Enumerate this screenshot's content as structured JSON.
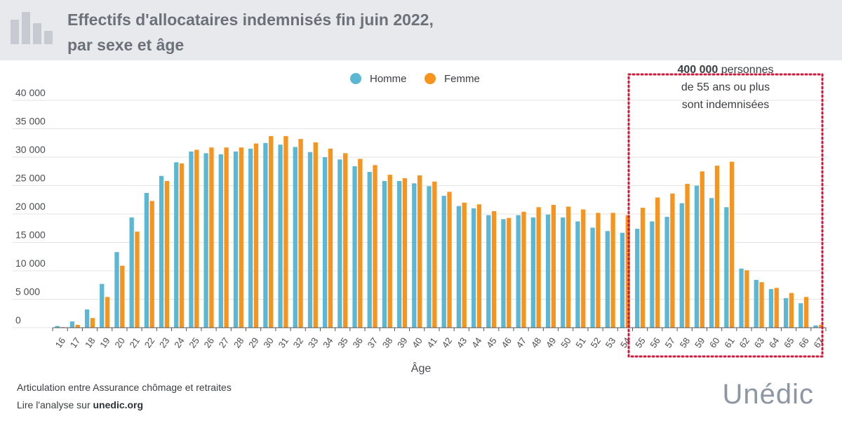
{
  "header": {
    "title_line1": "Effectifs d'allocataires indemnisés fin juin 2022,",
    "title_line2": "par sexe et âge"
  },
  "annotation": {
    "bold": "400 000",
    "line1_rest": " personnes",
    "line2": "de 55 ans ou plus",
    "line3": "sont indemnisées"
  },
  "footer": {
    "line1": "Articulation entre Assurance chômage et retraites",
    "line2_prefix": "Lire l'analyse sur ",
    "line2_link": "unedic.org",
    "brand": "Unédic"
  },
  "colors": {
    "homme": "#5bb8d4",
    "femme": "#f7941d",
    "annotation_box": "#d6173a",
    "header_bg": "#e8e9ec"
  },
  "chart_data": {
    "type": "bar",
    "xlabel": "Âge",
    "ylabel": "",
    "ylim": [
      0,
      40000
    ],
    "yticks": [
      0,
      5000,
      10000,
      15000,
      20000,
      25000,
      30000,
      35000,
      40000
    ],
    "ytick_labels": [
      "0",
      "5 000",
      "10 000",
      "15 000",
      "20 000",
      "25 000",
      "30 000",
      "35 000",
      "40 000"
    ],
    "grid": true,
    "legend": "top-center",
    "categories": [
      "16",
      "17",
      "18",
      "19",
      "20",
      "21",
      "22",
      "23",
      "24",
      "25",
      "26",
      "27",
      "28",
      "29",
      "30",
      "31",
      "32",
      "33",
      "34",
      "35",
      "36",
      "37",
      "38",
      "39",
      "40",
      "41",
      "42",
      "43",
      "44",
      "45",
      "46",
      "47",
      "48",
      "49",
      "50",
      "51",
      "52",
      "53",
      "54",
      "55",
      "56",
      "57",
      "58",
      "59",
      "60",
      "61",
      "62",
      "63",
      "64",
      "65",
      "66",
      "67"
    ],
    "series": [
      {
        "name": "Homme",
        "values": [
          300,
          1100,
          3200,
          7700,
          13300,
          19400,
          23700,
          26700,
          29100,
          31000,
          30700,
          30500,
          31000,
          31500,
          32500,
          32200,
          31800,
          30900,
          30000,
          29600,
          28400,
          27400,
          25800,
          25800,
          25400,
          24900,
          23200,
          21400,
          21000,
          19800,
          19100,
          19800,
          19400,
          19900,
          19400,
          18700,
          17600,
          17000,
          16700,
          17400,
          18700,
          19500,
          21900,
          25000,
          22800,
          21200,
          10400,
          8400,
          6800,
          5200,
          4300,
          400
        ],
        "color_key": "homme"
      },
      {
        "name": "Femme",
        "values": [
          100,
          500,
          1700,
          5400,
          10900,
          16900,
          22300,
          25800,
          28900,
          31300,
          31700,
          31700,
          31700,
          32400,
          33700,
          33700,
          33200,
          32600,
          31500,
          30700,
          29700,
          28600,
          26900,
          26300,
          26800,
          25700,
          23900,
          22000,
          21700,
          20500,
          19300,
          20400,
          21200,
          21600,
          21300,
          20800,
          20200,
          20200,
          19800,
          21100,
          22900,
          23600,
          25300,
          27500,
          28500,
          29200,
          10100,
          8000,
          7000,
          6100,
          5400,
          500
        ],
        "color_key": "femme"
      }
    ]
  }
}
